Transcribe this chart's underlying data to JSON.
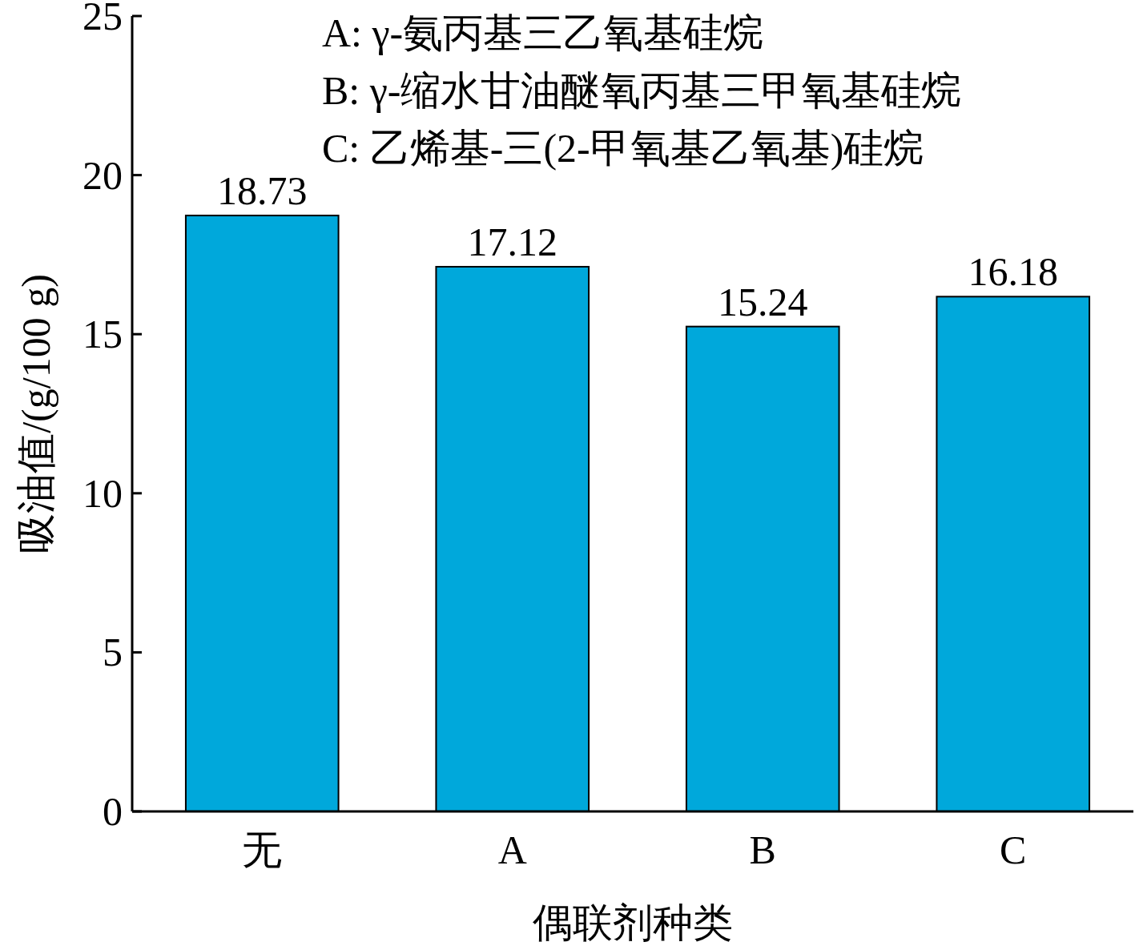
{
  "chart_data": {
    "type": "bar",
    "xlabel": "偶联剂种类",
    "ylabel": "吸油值/(g/100 g)",
    "categories": [
      "无",
      "A",
      "B",
      "C"
    ],
    "values": [
      18.73,
      17.12,
      15.24,
      16.18
    ],
    "color": "#00a8db",
    "ylim": [
      0,
      25
    ],
    "yticks": [
      0,
      5,
      10,
      15,
      20,
      25
    ],
    "data_labels": true,
    "annotations": [
      "A: γ-氨丙基三乙氧基硅烷",
      "B: γ-缩水甘油醚氧丙基三甲氧基硅烷",
      "C: 乙烯基-三(2-甲氧基乙氧基)硅烷"
    ]
  }
}
